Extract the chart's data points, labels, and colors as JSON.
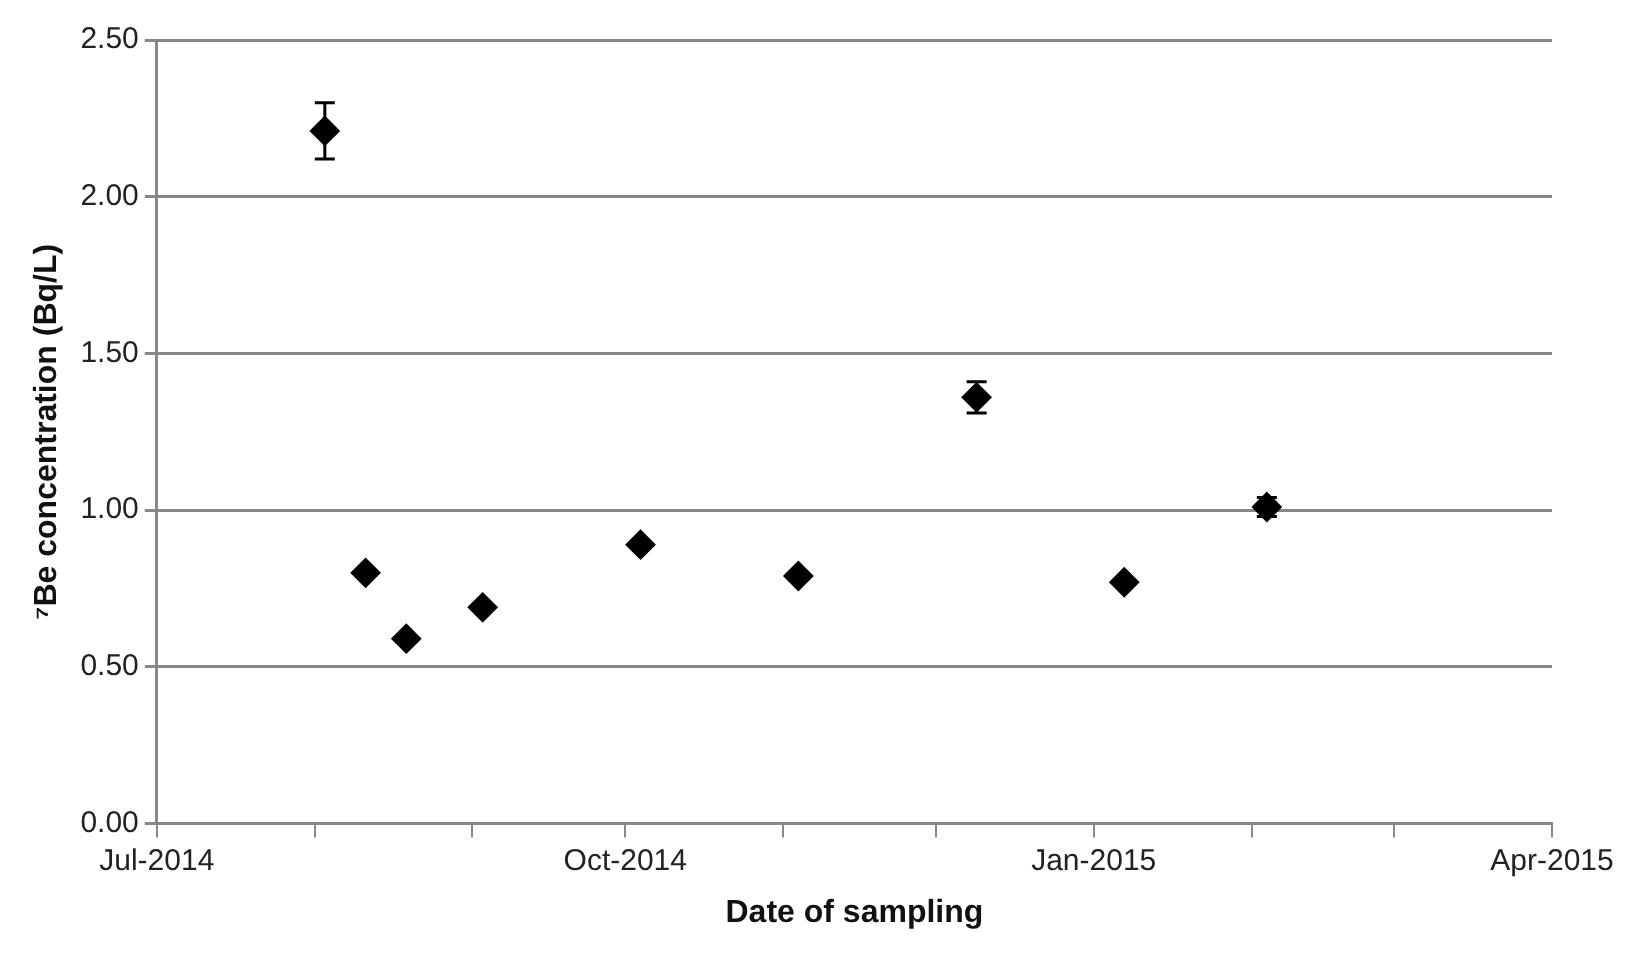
{
  "chart_data": {
    "type": "scatter",
    "xlabel": "Date of sampling",
    "ylabel": "⁷Be concentration (Bq/L)",
    "x": [
      "2014-08-03",
      "2014-08-11",
      "2014-08-19",
      "2014-09-03",
      "2014-10-04",
      "2014-11-04",
      "2014-12-09",
      "2015-01-07",
      "2015-02-04"
    ],
    "series": [
      {
        "color": "#000000",
        "values": [
          2.21,
          0.8,
          0.59,
          0.69,
          0.89,
          0.79,
          1.36,
          0.77,
          1.01
        ],
        "errors": [
          0.09,
          null,
          null,
          null,
          null,
          null,
          0.05,
          null,
          0.03
        ]
      }
    ],
    "xlim": [
      "2014-07-01",
      "2015-04-01"
    ],
    "xticks": [
      {
        "value": "2014-07",
        "label": "Jul-2014"
      },
      {
        "value": "2014-08",
        "label": null
      },
      {
        "value": "2014-09",
        "label": null
      },
      {
        "value": "2014-10",
        "label": "Oct-2014"
      },
      {
        "value": "2014-11",
        "label": null
      },
      {
        "value": "2014-12",
        "label": null
      },
      {
        "value": "2015-01",
        "label": "Jan-2015"
      },
      {
        "value": "2015-02",
        "label": null
      },
      {
        "value": "2015-03",
        "label": null
      },
      {
        "value": "2015-04",
        "label": "Apr-2015"
      }
    ],
    "ylim": [
      0,
      2.5
    ],
    "yticks": [
      {
        "value": 0,
        "label": "0.00"
      },
      {
        "value": 0.5,
        "label": "0.50"
      },
      {
        "value": 1,
        "label": "1.00"
      },
      {
        "value": 1.5,
        "label": "1.50"
      },
      {
        "value": 2,
        "label": "2.00"
      },
      {
        "value": 2.5,
        "label": "2.50"
      }
    ],
    "grid": "y",
    "marker": "diamond",
    "legend": false
  }
}
